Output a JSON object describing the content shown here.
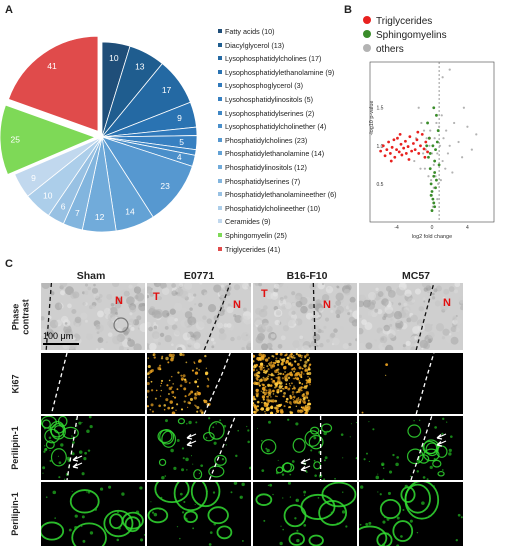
{
  "panels": {
    "a": "A",
    "b": "B",
    "c": "C"
  },
  "chart_data": [
    {
      "type": "pie",
      "categories": [
        "Fatty acids",
        "Diacylglycerol",
        "Lysophosphatidylcholines",
        "Lysophosphatidylethanolamine",
        "Lysophosphoglycerol",
        "Lysohosphatidylinositols",
        "Lysophosphatidylserines",
        "Lysophosphatidylcholinether",
        "Phosphatidylcholines",
        "Phosphatidylethanolamine",
        "Phosphatidylinositols",
        "Phosphatidylserines",
        "Phosphatidylethanolamineether",
        "Phosphatidylcholineether",
        "Ceramides",
        "Sphingomyelin",
        "Triglycerides"
      ],
      "legend_labels": [
        "Fatty acids (10)",
        "Diacylglycerol (13)",
        "Lysophosphatidylcholines (17)",
        "Lysophosphatidylethanolamine (9)",
        "Lysophosphoglycerol (3)",
        "Lysohosphatidylinositols (5)",
        "Lysophosphatidylserines (2)",
        "Lysophosphatidylcholinether (4)",
        "Phosphatidylcholines (23)",
        "Phosphatidylethanolamine (14)",
        "Phosphatidylinositols (12)",
        "Phosphatidylserines (7)",
        "Phosphatidylethanolamineether (6)",
        "Phosphatidylcholineether (10)",
        "Ceramides (9)",
        "Sphingomyelin (25)",
        "Triglycerides (41)"
      ],
      "values": [
        10,
        13,
        17,
        9,
        3,
        5,
        2,
        4,
        23,
        14,
        12,
        7,
        6,
        10,
        9,
        25,
        41
      ],
      "slice_labels": [
        "10",
        "13",
        "17",
        "9",
        "",
        "5",
        "",
        "4",
        "23",
        "14",
        "12",
        "7",
        "6",
        "10",
        "9",
        "25",
        "41"
      ],
      "colors": [
        "#1f4e79",
        "#1f5d8f",
        "#2469a3",
        "#2a73b2",
        "#3079bb",
        "#3780c1",
        "#3f87c5",
        "#4a8fca",
        "#5698d0",
        "#63a2d5",
        "#71abda",
        "#82b5de",
        "#98c1e3",
        "#acceea",
        "#c1d8ee",
        "#7ed957",
        "#e04b4b"
      ],
      "exploded": [
        15,
        16
      ],
      "legend_placement": "right"
    },
    {
      "type": "scatter",
      "xlabel": "log2 fold change",
      "ylabel": "-log10 p-value",
      "xlim": [
        -7,
        7
      ],
      "ylim": [
        0,
        2.1
      ],
      "xticks": [
        "-4",
        "0",
        "4"
      ],
      "yticks": [
        "0.5",
        "1.0",
        "1.5"
      ],
      "legend_placement": "top-left",
      "series": [
        {
          "name": "Triglycerides",
          "color": "#e8211f",
          "points": [
            [
              -5.8,
              0.93
            ],
            [
              -5.5,
              1.0
            ],
            [
              -5.3,
              0.87
            ],
            [
              -5.1,
              0.95
            ],
            [
              -4.9,
              1.05
            ],
            [
              -4.7,
              0.9
            ],
            [
              -4.5,
              0.98
            ],
            [
              -4.3,
              1.08
            ],
            [
              -4.2,
              0.85
            ],
            [
              -4.0,
              0.95
            ],
            [
              -3.9,
              1.1
            ],
            [
              -3.7,
              0.92
            ],
            [
              -3.5,
              1.02
            ],
            [
              -3.4,
              0.88
            ],
            [
              -3.2,
              0.97
            ],
            [
              -3.0,
              1.06
            ],
            [
              -2.9,
              0.9
            ],
            [
              -2.7,
              0.99
            ],
            [
              -2.5,
              1.12
            ],
            [
              -2.3,
              0.93
            ],
            [
              -2.1,
              1.03
            ],
            [
              -1.9,
              0.95
            ],
            [
              -1.7,
              1.08
            ],
            [
              -1.5,
              0.9
            ],
            [
              -1.3,
              1.0
            ],
            [
              -1.1,
              1.15
            ],
            [
              -0.9,
              0.96
            ],
            [
              -0.7,
              1.05
            ],
            [
              -0.5,
              0.92
            ],
            [
              -0.3,
              1.1
            ],
            [
              -4.6,
              0.8
            ],
            [
              -3.6,
              1.15
            ],
            [
              -2.6,
              0.82
            ],
            [
              -1.6,
              1.18
            ],
            [
              -0.8,
              0.85
            ]
          ]
        },
        {
          "name": "Sphingomyelins",
          "color": "#3a8c2a",
          "points": [
            [
              -0.5,
              1.3
            ],
            [
              -0.3,
              1.1
            ],
            [
              -0.2,
              0.9
            ],
            [
              0.1,
              1.0
            ],
            [
              0.3,
              0.8
            ],
            [
              0.2,
              0.6
            ],
            [
              -0.1,
              0.5
            ],
            [
              0.0,
              0.4
            ],
            [
              0.1,
              0.3
            ],
            [
              0.2,
              0.25
            ],
            [
              0.3,
              0.2
            ],
            [
              -0.2,
              0.7
            ],
            [
              0.4,
              0.95
            ],
            [
              0.6,
              1.05
            ],
            [
              0.5,
              0.55
            ],
            [
              -0.4,
              0.85
            ],
            [
              0.0,
              0.15
            ],
            [
              0.7,
              1.2
            ],
            [
              0.5,
              1.4
            ],
            [
              -0.6,
              1.0
            ],
            [
              0.8,
              0.75
            ],
            [
              0.2,
              1.5
            ],
            [
              0.4,
              0.45
            ],
            [
              -0.1,
              0.35
            ],
            [
              0.3,
              0.65
            ]
          ]
        },
        {
          "name": "others",
          "color": "#b3b3b3",
          "points": [
            [
              -1.5,
              1.5
            ],
            [
              -1.2,
              1.3
            ],
            [
              -0.9,
              1.2
            ],
            [
              -0.6,
              1.1
            ],
            [
              -0.3,
              1.0
            ],
            [
              0.0,
              0.9
            ],
            [
              0.3,
              1.1
            ],
            [
              0.6,
              0.9
            ],
            [
              0.9,
              1.0
            ],
            [
              1.2,
              0.8
            ],
            [
              1.5,
              0.7
            ],
            [
              1.8,
              0.9
            ],
            [
              -2.0,
              0.8
            ],
            [
              -1.8,
              1.1
            ],
            [
              -1.0,
              0.9
            ],
            [
              -0.8,
              0.7
            ],
            [
              0.2,
              0.75
            ],
            [
              0.4,
              0.6
            ],
            [
              0.7,
              0.5
            ],
            [
              1.0,
              0.55
            ],
            [
              1.3,
              1.1
            ],
            [
              1.6,
              1.2
            ],
            [
              2.0,
              1.0
            ],
            [
              2.5,
              1.3
            ],
            [
              3.0,
              1.05
            ],
            [
              3.4,
              0.85
            ],
            [
              4.0,
              1.25
            ],
            [
              4.5,
              0.95
            ],
            [
              5.0,
              1.15
            ],
            [
              1.2,
              1.9
            ],
            [
              2.0,
              2.0
            ],
            [
              0.5,
              1.3
            ],
            [
              -0.2,
              1.2
            ],
            [
              0.1,
              0.2
            ],
            [
              0.0,
              0.35
            ],
            [
              0.2,
              0.45
            ],
            [
              -0.1,
              0.55
            ],
            [
              0.6,
              0.3
            ],
            [
              -0.4,
              0.6
            ],
            [
              1.1,
              1.4
            ],
            [
              2.3,
              0.65
            ],
            [
              -1.3,
              0.7
            ],
            [
              -0.7,
              0.95
            ],
            [
              0.8,
              1.25
            ],
            [
              3.6,
              1.5
            ]
          ]
        }
      ]
    }
  ],
  "figure_c": {
    "columns": [
      "Sham",
      "E0771",
      "B16-F10",
      "MC57"
    ],
    "rows": [
      "Phase contrast",
      "Ki67",
      "Perilipin-1",
      "Perilipin-1"
    ],
    "scale_bar": "100 μm",
    "labels": {
      "t": "T",
      "n": "N"
    }
  }
}
